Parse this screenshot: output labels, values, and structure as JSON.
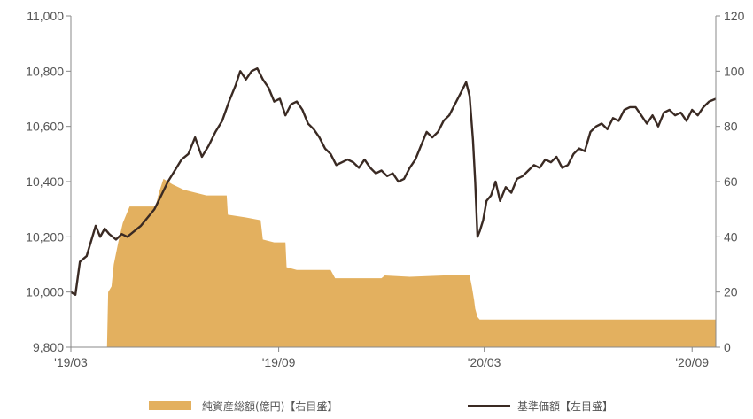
{
  "chart_data": {
    "type": "line+area",
    "left_axis": {
      "ylim": [
        9800,
        11000
      ],
      "ticks": [
        "9,800",
        "10,000",
        "10,200",
        "10,400",
        "10,600",
        "10,800",
        "11,000"
      ],
      "tick_values": [
        9800,
        10000,
        10200,
        10400,
        10600,
        10800,
        11000
      ]
    },
    "right_axis": {
      "ylim": [
        0,
        120
      ],
      "ticks": [
        "0",
        "20",
        "40",
        "60",
        "80",
        "100",
        "120"
      ],
      "tick_values": [
        0,
        20,
        40,
        60,
        80,
        100,
        120
      ]
    },
    "x_axis": {
      "range": [
        0,
        571
      ],
      "ticks": [
        "'19/03",
        "'19/09",
        "'20/03",
        "'20/09"
      ],
      "tick_values": [
        0,
        184,
        366,
        550
      ]
    },
    "series": [
      {
        "name": "純資産総額(億円)【右目盛】",
        "kind": "area",
        "axis": "right",
        "color": "#E3B05F",
        "points": [
          [
            0,
            0
          ],
          [
            32,
            0
          ],
          [
            33,
            20
          ],
          [
            36,
            22
          ],
          [
            38,
            30
          ],
          [
            42,
            38
          ],
          [
            46,
            45
          ],
          [
            52,
            51
          ],
          [
            75,
            51
          ],
          [
            78,
            56
          ],
          [
            82,
            61
          ],
          [
            86,
            60
          ],
          [
            90,
            59
          ],
          [
            100,
            57
          ],
          [
            120,
            55
          ],
          [
            138,
            55
          ],
          [
            139,
            48
          ],
          [
            155,
            47
          ],
          [
            168,
            46
          ],
          [
            170,
            39
          ],
          [
            180,
            38
          ],
          [
            190,
            38
          ],
          [
            191,
            29
          ],
          [
            200,
            28
          ],
          [
            230,
            28
          ],
          [
            234,
            25
          ],
          [
            260,
            25
          ],
          [
            275,
            25
          ],
          [
            278,
            26
          ],
          [
            300,
            25.5
          ],
          [
            330,
            26
          ],
          [
            353,
            26
          ],
          [
            355,
            22
          ],
          [
            357,
            17
          ],
          [
            358,
            14
          ],
          [
            360,
            11
          ],
          [
            362,
            10
          ],
          [
            400,
            10
          ],
          [
            450,
            10
          ],
          [
            500,
            10
          ],
          [
            571,
            10
          ]
        ]
      },
      {
        "name": "基準価額【左目盛】",
        "kind": "line",
        "axis": "left",
        "color": "#3a2a23",
        "points": [
          [
            0,
            10000
          ],
          [
            4,
            9990
          ],
          [
            8,
            10110
          ],
          [
            14,
            10130
          ],
          [
            22,
            10240
          ],
          [
            26,
            10200
          ],
          [
            30,
            10230
          ],
          [
            34,
            10210
          ],
          [
            40,
            10190
          ],
          [
            45,
            10210
          ],
          [
            50,
            10200
          ],
          [
            56,
            10220
          ],
          [
            62,
            10240
          ],
          [
            68,
            10270
          ],
          [
            74,
            10300
          ],
          [
            80,
            10350
          ],
          [
            86,
            10400
          ],
          [
            92,
            10440
          ],
          [
            98,
            10480
          ],
          [
            104,
            10500
          ],
          [
            110,
            10560
          ],
          [
            116,
            10490
          ],
          [
            122,
            10530
          ],
          [
            128,
            10580
          ],
          [
            134,
            10620
          ],
          [
            140,
            10690
          ],
          [
            146,
            10750
          ],
          [
            150,
            10800
          ],
          [
            155,
            10770
          ],
          [
            160,
            10800
          ],
          [
            165,
            10810
          ],
          [
            170,
            10770
          ],
          [
            175,
            10740
          ],
          [
            180,
            10690
          ],
          [
            185,
            10700
          ],
          [
            190,
            10640
          ],
          [
            195,
            10680
          ],
          [
            200,
            10690
          ],
          [
            205,
            10660
          ],
          [
            210,
            10610
          ],
          [
            215,
            10590
          ],
          [
            220,
            10560
          ],
          [
            225,
            10520
          ],
          [
            230,
            10500
          ],
          [
            235,
            10460
          ],
          [
            240,
            10470
          ],
          [
            245,
            10480
          ],
          [
            250,
            10470
          ],
          [
            255,
            10450
          ],
          [
            260,
            10480
          ],
          [
            265,
            10450
          ],
          [
            270,
            10430
          ],
          [
            275,
            10440
          ],
          [
            280,
            10420
          ],
          [
            285,
            10430
          ],
          [
            290,
            10400
          ],
          [
            295,
            10410
          ],
          [
            300,
            10450
          ],
          [
            305,
            10480
          ],
          [
            310,
            10530
          ],
          [
            315,
            10580
          ],
          [
            320,
            10560
          ],
          [
            325,
            10580
          ],
          [
            330,
            10620
          ],
          [
            335,
            10640
          ],
          [
            340,
            10680
          ],
          [
            345,
            10720
          ],
          [
            350,
            10760
          ],
          [
            353,
            10710
          ],
          [
            356,
            10550
          ],
          [
            358,
            10400
          ],
          [
            360,
            10200
          ],
          [
            362,
            10220
          ],
          [
            365,
            10260
          ],
          [
            368,
            10330
          ],
          [
            372,
            10350
          ],
          [
            376,
            10400
          ],
          [
            380,
            10330
          ],
          [
            385,
            10380
          ],
          [
            390,
            10360
          ],
          [
            395,
            10410
          ],
          [
            400,
            10420
          ],
          [
            405,
            10440
          ],
          [
            410,
            10460
          ],
          [
            415,
            10450
          ],
          [
            420,
            10480
          ],
          [
            425,
            10470
          ],
          [
            430,
            10490
          ],
          [
            435,
            10450
          ],
          [
            440,
            10460
          ],
          [
            445,
            10500
          ],
          [
            450,
            10520
          ],
          [
            455,
            10510
          ],
          [
            460,
            10580
          ],
          [
            465,
            10600
          ],
          [
            470,
            10610
          ],
          [
            475,
            10590
          ],
          [
            480,
            10630
          ],
          [
            485,
            10620
          ],
          [
            490,
            10660
          ],
          [
            495,
            10670
          ],
          [
            500,
            10670
          ],
          [
            505,
            10640
          ],
          [
            510,
            10610
          ],
          [
            515,
            10640
          ],
          [
            520,
            10600
          ],
          [
            525,
            10650
          ],
          [
            530,
            10660
          ],
          [
            535,
            10640
          ],
          [
            540,
            10650
          ],
          [
            545,
            10620
          ],
          [
            550,
            10660
          ],
          [
            555,
            10640
          ],
          [
            560,
            10670
          ],
          [
            565,
            10690
          ],
          [
            571,
            10700
          ]
        ]
      }
    ]
  },
  "legend": {
    "area_label": "純資産総額(億円)【右目盛】",
    "line_label": "基準価額【左目盛】"
  },
  "colors": {
    "area": "#E3B05F",
    "line": "#3a2a23",
    "axis": "#888888",
    "text": "#555555"
  }
}
